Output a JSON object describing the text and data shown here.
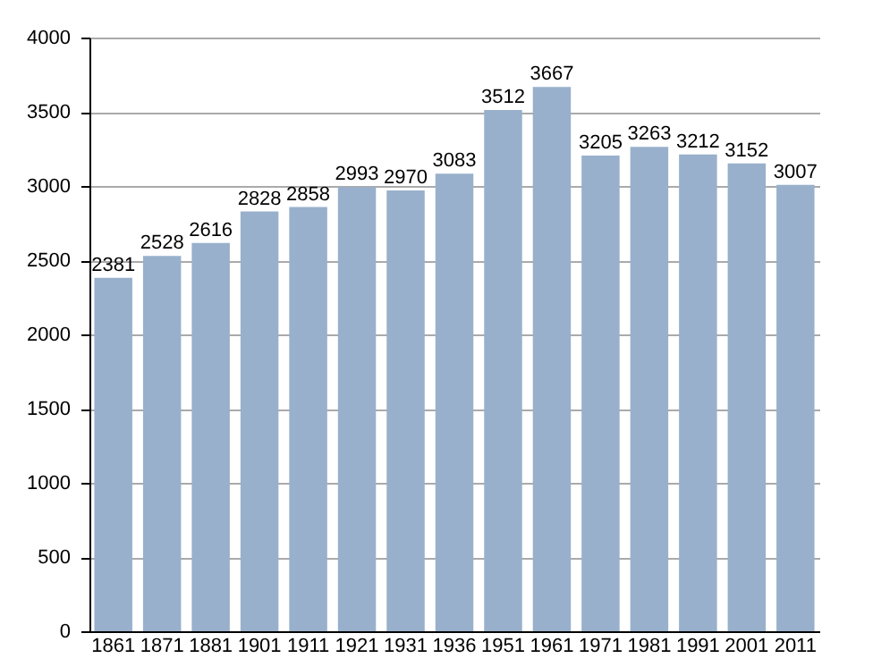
{
  "chart_data": {
    "type": "bar",
    "categories": [
      "1861",
      "1871",
      "1881",
      "1901",
      "1911",
      "1921",
      "1931",
      "1936",
      "1951",
      "1961",
      "1971",
      "1981",
      "1991",
      "2001",
      "2011"
    ],
    "values": [
      2381,
      2528,
      2616,
      2828,
      2858,
      2993,
      2970,
      3083,
      3512,
      3667,
      3205,
      3263,
      3212,
      3152,
      3007
    ],
    "color": "#98b0cc",
    "ylim": [
      0,
      4000
    ],
    "yticks": [
      0,
      500,
      1000,
      1500,
      2000,
      2500,
      3000,
      3500,
      4000
    ],
    "grid": "y",
    "data_labels": true
  }
}
